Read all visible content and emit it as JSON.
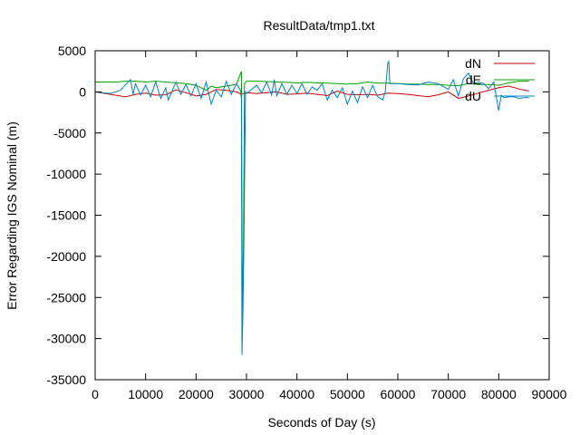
{
  "chart_data": {
    "type": "line",
    "title": "ResultData/tmp1.txt",
    "xlabel": "Seconds of Day (s)",
    "ylabel": "Error Regarding IGS Nominal (m)",
    "xlim": [
      0,
      90000
    ],
    "ylim": [
      -35000,
      5000
    ],
    "xticks": [
      0,
      10000,
      20000,
      30000,
      40000,
      50000,
      60000,
      70000,
      80000,
      90000
    ],
    "yticks": [
      5000,
      0,
      -5000,
      -10000,
      -15000,
      -20000,
      -25000,
      -30000,
      -35000
    ],
    "xtick_labels": [
      "0",
      "10000",
      "20000",
      "30000",
      "40000",
      "50000",
      "60000",
      "70000",
      "80000",
      "90000"
    ],
    "ytick_labels": [
      "5000",
      "0",
      "-5000",
      "-10000",
      "-15000",
      "-20000",
      "-25000",
      "-30000",
      "-35000"
    ],
    "grid": false,
    "legend": "top-right",
    "series": [
      {
        "name": "dN",
        "color": "#cc0000",
        "x": [
          0,
          3000,
          6000,
          8000,
          10000,
          12000,
          14000,
          16000,
          18000,
          20000,
          22000,
          24000,
          26000,
          28000,
          29000,
          30000,
          32000,
          34000,
          36000,
          38000,
          40000,
          42000,
          44000,
          46000,
          48000,
          50000,
          52000,
          54000,
          56000,
          58000,
          60000,
          62000,
          64000,
          66000,
          68000,
          70000,
          72000,
          74000,
          76000,
          78000,
          80000,
          82000,
          84000,
          86000
        ],
        "y": [
          0,
          -300,
          -600,
          -300,
          -150,
          -400,
          -350,
          250,
          -100,
          -500,
          -300,
          300,
          200,
          0,
          -300,
          -100,
          -200,
          -100,
          0,
          -300,
          -250,
          -150,
          -300,
          -450,
          100,
          -300,
          -350,
          -300,
          -400,
          -150,
          -200,
          -300,
          -450,
          -600,
          -350,
          0,
          -800,
          -500,
          -150,
          200,
          500,
          700,
          350,
          100
        ]
      },
      {
        "name": "dE",
        "color": "#00a000",
        "x": [
          0,
          4000,
          6000,
          8000,
          10000,
          12000,
          14000,
          16000,
          18000,
          20000,
          22000,
          23000,
          24000,
          26000,
          28000,
          29000,
          29200,
          29400,
          29600,
          30000,
          32000,
          34000,
          36000,
          38000,
          40000,
          42000,
          44000,
          46000,
          48000,
          50000,
          52000,
          54000,
          56000,
          58000,
          60000,
          62000,
          64000,
          66000,
          68000,
          70000,
          72000,
          74000,
          76000,
          78000,
          80000,
          82000,
          84000,
          86000
        ],
        "y": [
          1200,
          1200,
          1300,
          1300,
          1200,
          1300,
          1200,
          1100,
          1000,
          800,
          200,
          700,
          500,
          700,
          900,
          2500,
          -28000,
          -18000,
          1000,
          1300,
          1300,
          1250,
          1200,
          1150,
          1100,
          1150,
          1100,
          1050,
          1000,
          950,
          1000,
          1200,
          1050,
          1050,
          1000,
          950,
          950,
          900,
          900,
          800,
          750,
          1000,
          900,
          900,
          800,
          1100,
          1300,
          1300
        ]
      },
      {
        "name": "dU",
        "color": "#0080c0",
        "x": [
          0,
          3000,
          5000,
          7000,
          7500,
          8000,
          9000,
          10000,
          11000,
          12000,
          13000,
          14000,
          14500,
          16000,
          17000,
          18000,
          19000,
          20000,
          21000,
          22000,
          23000,
          24000,
          25000,
          26000,
          27000,
          28000,
          28800,
          29000,
          29100,
          29300,
          29500,
          29800,
          30000,
          32000,
          33000,
          34000,
          35000,
          35500,
          36000,
          37000,
          38000,
          39000,
          40000,
          41000,
          42000,
          43000,
          44000,
          45000,
          46000,
          47000,
          48000,
          49000,
          50000,
          51000,
          52000,
          53000,
          54000,
          55000,
          56000,
          57000,
          57500,
          58000,
          58200,
          58400,
          60000,
          62000,
          64000,
          66000,
          68000,
          70000,
          71000,
          72000,
          73000,
          74000,
          75000,
          76000,
          77000,
          78000,
          79000,
          80000,
          80500,
          81000,
          82000,
          83000,
          84000,
          85000,
          86000
        ],
        "y": [
          0,
          -200,
          200,
          1500,
          -300,
          1000,
          -400,
          800,
          -600,
          1200,
          -800,
          500,
          -1000,
          1200,
          -300,
          900,
          -500,
          1000,
          -800,
          1200,
          -1500,
          200,
          -600,
          1300,
          -300,
          1000,
          200,
          -800,
          -32000,
          -26500,
          -18000,
          0,
          -200,
          800,
          -100,
          1200,
          -400,
          1500,
          -500,
          1000,
          -300,
          800,
          -200,
          1000,
          -300,
          600,
          200,
          1000,
          -1000,
          200,
          -700,
          500,
          -1500,
          100,
          -1300,
          600,
          -700,
          800,
          -600,
          -1000,
          0,
          3500,
          3700,
          1000,
          1000,
          900,
          850,
          1200,
          1000,
          300,
          1500,
          -500,
          1600,
          2300,
          1000,
          1200,
          1000,
          400,
          1200,
          -2300,
          -400,
          -700,
          -600,
          -600,
          -800,
          -700,
          -700
        ]
      }
    ]
  }
}
